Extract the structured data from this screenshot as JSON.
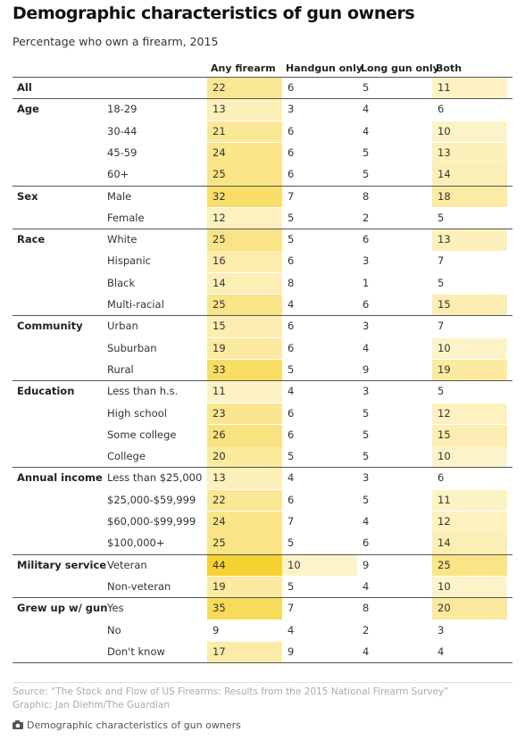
{
  "header": {
    "title": "Demographic characteristics of gun owners",
    "subtitle": "Percentage who own a firearm, 2015"
  },
  "table": {
    "columns": [
      "Any firearm",
      "Handgun only",
      "Long gun only",
      "Both"
    ],
    "groups": [
      {
        "label": "All",
        "rows": [
          {
            "values": [
              22,
              6,
              5,
              11
            ]
          }
        ]
      },
      {
        "label": "Age",
        "rows": [
          {
            "label": "18-29",
            "values": [
              13,
              3,
              4,
              6
            ]
          },
          {
            "label": "30-44",
            "values": [
              21,
              6,
              4,
              10
            ]
          },
          {
            "label": "45-59",
            "values": [
              24,
              6,
              5,
              13
            ]
          },
          {
            "label": "60+",
            "values": [
              25,
              6,
              5,
              14
            ]
          }
        ]
      },
      {
        "label": "Sex",
        "rows": [
          {
            "label": "Male",
            "values": [
              32,
              7,
              8,
              18
            ]
          },
          {
            "label": "Female",
            "values": [
              12,
              5,
              2,
              5
            ]
          }
        ]
      },
      {
        "label": "Race",
        "rows": [
          {
            "label": "White",
            "values": [
              25,
              5,
              6,
              13
            ]
          },
          {
            "label": "Hispanic",
            "values": [
              16,
              6,
              3,
              7
            ]
          },
          {
            "label": "Black",
            "values": [
              14,
              8,
              1,
              5
            ]
          },
          {
            "label": "Multi-racial",
            "values": [
              25,
              4,
              6,
              15
            ]
          }
        ]
      },
      {
        "label": "Community",
        "rows": [
          {
            "label": "Urban",
            "values": [
              15,
              6,
              3,
              7
            ]
          },
          {
            "label": "Suburban",
            "values": [
              19,
              6,
              4,
              10
            ]
          },
          {
            "label": "Rural",
            "values": [
              33,
              5,
              9,
              19
            ]
          }
        ]
      },
      {
        "label": "Education",
        "rows": [
          {
            "label": "Less than h.s.",
            "values": [
              11,
              4,
              3,
              5
            ]
          },
          {
            "label": "High school",
            "values": [
              23,
              6,
              5,
              12
            ]
          },
          {
            "label": "Some college",
            "values": [
              26,
              6,
              5,
              15
            ]
          },
          {
            "label": "College",
            "values": [
              20,
              5,
              5,
              10
            ]
          }
        ]
      },
      {
        "label": "Annual income",
        "rows": [
          {
            "label": "Less than $25,000",
            "values": [
              13,
              4,
              3,
              6
            ]
          },
          {
            "label": "$25,000-$59,999",
            "values": [
              22,
              6,
              5,
              11
            ]
          },
          {
            "label": "$60,000-$99,999",
            "values": [
              24,
              7,
              4,
              12
            ]
          },
          {
            "label": "$100,000+",
            "values": [
              25,
              5,
              6,
              14
            ]
          }
        ]
      },
      {
        "label": "Military service",
        "rows": [
          {
            "label": "Veteran",
            "values": [
              44,
              10,
              9,
              25
            ]
          },
          {
            "label": "Non-veteran",
            "values": [
              19,
              5,
              4,
              10
            ]
          }
        ]
      },
      {
        "label": "Grew up w/ gun",
        "rows": [
          {
            "label": "Yes",
            "values": [
              35,
              7,
              8,
              20
            ]
          },
          {
            "label": "No",
            "values": [
              9,
              4,
              2,
              3
            ]
          },
          {
            "label": "Don't know",
            "values": [
              17,
              9,
              4,
              4
            ]
          }
        ]
      }
    ]
  },
  "footer": {
    "source": "Source: “The Stock and Flow of US Firearms: Results from the 2015 National Firearm Survey”",
    "credit": "Graphic: Jan Diehm/The Guardian",
    "caption": "Demographic characteristics of gun owners"
  }
}
